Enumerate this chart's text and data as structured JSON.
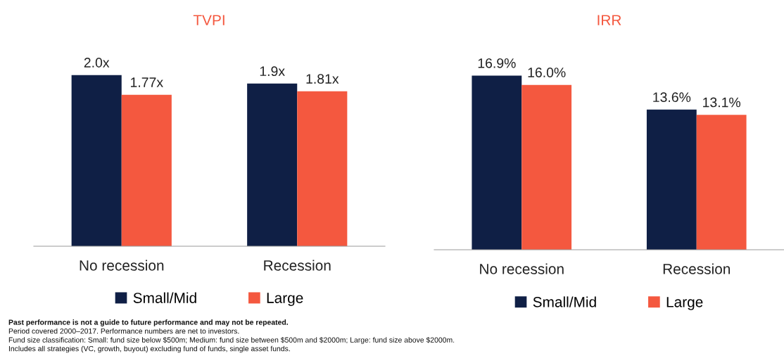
{
  "chart_data": [
    {
      "type": "bar",
      "title": "TVPI",
      "categories": [
        "No recession",
        "Recession"
      ],
      "tick_labels": "x",
      "legend": "bottom",
      "series": [
        {
          "name": "Small/Mid",
          "color": "#0f1f45",
          "values": [
            2.0,
            1.9
          ],
          "value_labels": [
            "2.0x",
            "1.9x"
          ]
        },
        {
          "name": "Large",
          "color": "#f4583f",
          "values": [
            1.77,
            1.81
          ],
          "value_labels": [
            "1.77x",
            "1.81x"
          ]
        }
      ],
      "annotations": [
        "Past performance is not a guide to future performance and may not be repeated.",
        "Period covered 2000–2017. Performance numbers are net to investors.",
        "Fund size classification: Small: fund size below $500m; Medium: fund size between $500m and $2000m; Large: fund size above $2000m.",
        "Includes all strategies (VC, growth, buyout) excluding fund of funds, single asset funds."
      ]
    },
    {
      "type": "bar",
      "title": "IRR",
      "categories": [
        "No recession",
        "Recession"
      ],
      "tick_labels": "x",
      "legend": "bottom",
      "series": [
        {
          "name": "Small/Mid",
          "color": "#0f1f45",
          "values": [
            16.9,
            13.6
          ],
          "value_labels": [
            "16.9%",
            "13.6%"
          ]
        },
        {
          "name": "Large",
          "color": "#f4583f",
          "values": [
            16.0,
            13.1
          ],
          "value_labels": [
            "16.0%",
            "13.1%"
          ]
        }
      ]
    }
  ]
}
